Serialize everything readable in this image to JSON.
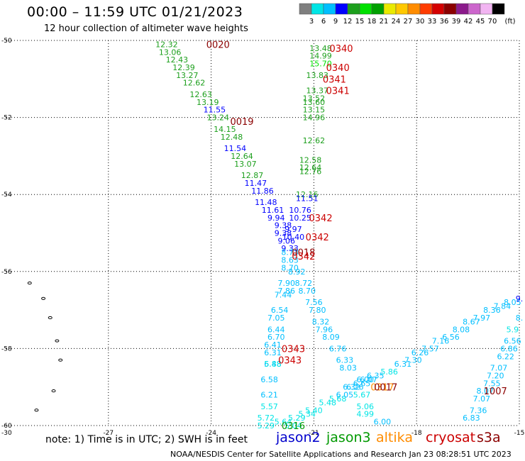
{
  "page": {
    "title": "00:00 – 11:59 UTC 01/21/2023",
    "subtitle": "12 hour collection of altimeter wave heights",
    "note": "note: 1) Time is in UTC; 2) SWH is in feet",
    "credit": "NOAA/NESDIS Center for Satellite Applications and Research    Jan 23 08:28:51 UTC 2023"
  },
  "chart_data": {
    "type": "scatter",
    "title": "00:00 – 11:59 UTC 01/21/2023",
    "subtitle": "12 hour collection of altimeter wave heights",
    "xlim": [
      -30,
      -15
    ],
    "ylim": [
      -60,
      -50
    ],
    "x_ticks": [
      -27,
      -24,
      -21,
      -18,
      -15
    ],
    "x_tick_labels": [
      "-27",
      "-24",
      "-21",
      "-18",
      "-15"
    ],
    "y_ticks": [
      -50,
      -52,
      -54,
      -56,
      -58,
      -60
    ],
    "y_tick_labels": [
      "-50",
      "-52",
      "-54",
      "-56",
      "-58",
      "-60"
    ],
    "grid": true,
    "colorbar": {
      "unit": "(ft)",
      "labels": [
        "3",
        "6",
        "9",
        "12",
        "15",
        "18",
        "21",
        "24",
        "27",
        "30",
        "33",
        "36",
        "39",
        "42",
        "45",
        "70"
      ],
      "colors": [
        "#7f7f7f",
        "#00e5e5",
        "#00bfff",
        "#0000ff",
        "#1c9f1c",
        "#00e000",
        "#00a000",
        "#eaea00",
        "#ffc800",
        "#ff8c00",
        "#ff3c00",
        "#d40000",
        "#8b0000",
        "#8b1a8b",
        "#cc66cc",
        "#f2b5f2",
        "#000000"
      ]
    },
    "satellites": [
      {
        "name": "jason2",
        "color": "#0000cc"
      },
      {
        "name": "jason3",
        "color": "#009900"
      },
      {
        "name": "altika",
        "color": "#ff8c00"
      },
      {
        "name": "cryosat",
        "color": "#cc0000"
      },
      {
        "name": "s3a",
        "color": "#8b0000"
      }
    ],
    "time_labels": [
      {
        "text": "0020",
        "lon": -23.8,
        "lat": -50.1,
        "color": "#8b0000"
      },
      {
        "text": "0019",
        "lon": -23.1,
        "lat": -52.1,
        "color": "#8b0000"
      },
      {
        "text": "0340",
        "lon": -20.2,
        "lat": -50.2,
        "color": "#cc0000"
      },
      {
        "text": "0340",
        "lon": -20.3,
        "lat": -50.7,
        "color": "#cc0000"
      },
      {
        "text": "0341",
        "lon": -20.4,
        "lat": -51.0,
        "color": "#cc0000"
      },
      {
        "text": "0341",
        "lon": -20.3,
        "lat": -51.3,
        "color": "#cc0000"
      },
      {
        "text": "0342",
        "lon": -20.8,
        "lat": -54.6,
        "color": "#cc0000"
      },
      {
        "text": "0342",
        "lon": -20.9,
        "lat": -55.1,
        "color": "#cc0000"
      },
      {
        "text": "0018",
        "lon": -21.3,
        "lat": -55.5,
        "color": "#8b0000"
      },
      {
        "text": "0342",
        "lon": -21.3,
        "lat": -55.6,
        "color": "#cc0000"
      },
      {
        "text": "0343",
        "lon": -21.6,
        "lat": -58.0,
        "color": "#cc0000"
      },
      {
        "text": "0343",
        "lon": -21.7,
        "lat": -58.3,
        "color": "#cc0000"
      },
      {
        "text": "0317",
        "lon": -19.0,
        "lat": -59.0,
        "color": "#ff8c00"
      },
      {
        "text": "0017",
        "lon": -18.9,
        "lat": -59.0,
        "color": "#8b0000"
      },
      {
        "text": "0316",
        "lon": -21.6,
        "lat": -60.0,
        "color": "#009900"
      },
      {
        "text": "1007",
        "lon": -15.7,
        "lat": -59.1,
        "color": "#8b0000"
      }
    ],
    "points": [
      {
        "lon": -25.3,
        "lat": -50.1,
        "v": "12.32"
      },
      {
        "lon": -25.2,
        "lat": -50.3,
        "v": "13.06"
      },
      {
        "lon": -25.0,
        "lat": -50.5,
        "v": "12.43"
      },
      {
        "lon": -24.8,
        "lat": -50.7,
        "v": "12.39"
      },
      {
        "lon": -24.7,
        "lat": -50.9,
        "v": "13.27"
      },
      {
        "lon": -24.5,
        "lat": -51.1,
        "v": "12.62"
      },
      {
        "lon": -24.3,
        "lat": -51.4,
        "v": "12.63"
      },
      {
        "lon": -24.1,
        "lat": -51.6,
        "v": "13.19"
      },
      {
        "lon": -23.9,
        "lat": -51.8,
        "v": "11.55"
      },
      {
        "lon": -23.8,
        "lat": -52.0,
        "v": "13.24"
      },
      {
        "lon": -23.6,
        "lat": -52.3,
        "v": "14.15"
      },
      {
        "lon": -23.4,
        "lat": -52.5,
        "v": "12.48"
      },
      {
        "lon": -23.3,
        "lat": -52.8,
        "v": "11.54"
      },
      {
        "lon": -23.1,
        "lat": -53.0,
        "v": "12.64"
      },
      {
        "lon": -23.0,
        "lat": -53.2,
        "v": "13.07"
      },
      {
        "lon": -22.8,
        "lat": -53.5,
        "v": "12.87"
      },
      {
        "lon": -22.7,
        "lat": -53.7,
        "v": "11.47"
      },
      {
        "lon": -22.5,
        "lat": -53.9,
        "v": "11.86"
      },
      {
        "lon": -22.4,
        "lat": -54.2,
        "v": "11.48"
      },
      {
        "lon": -22.2,
        "lat": -54.4,
        "v": "11.61"
      },
      {
        "lon": -22.1,
        "lat": -54.6,
        "v": "9.94"
      },
      {
        "lon": -21.9,
        "lat": -54.8,
        "v": "9.38"
      },
      {
        "lon": -21.9,
        "lat": -55.0,
        "v": "9.38"
      },
      {
        "lon": -21.8,
        "lat": -55.2,
        "v": "9.06"
      },
      {
        "lon": -21.7,
        "lat": -55.4,
        "v": "9.33"
      },
      {
        "lon": -21.7,
        "lat": -55.5,
        "v": "8.73"
      },
      {
        "lon": -21.7,
        "lat": -55.7,
        "v": "8.63"
      },
      {
        "lon": -21.7,
        "lat": -55.9,
        "v": "8.70"
      },
      {
        "lon": -21.5,
        "lat": -56.0,
        "v": "8.92"
      },
      {
        "lon": -21.8,
        "lat": -56.3,
        "v": "7.90"
      },
      {
        "lon": -21.3,
        "lat": -56.3,
        "v": "8.72"
      },
      {
        "lon": -21.8,
        "lat": -56.5,
        "v": "7.86"
      },
      {
        "lon": -21.9,
        "lat": -56.6,
        "v": "7.44"
      },
      {
        "lon": -21.2,
        "lat": -56.5,
        "v": "8.70"
      },
      {
        "lon": -21.0,
        "lat": -56.8,
        "v": "7.56"
      },
      {
        "lon": -22.0,
        "lat": -57.0,
        "v": "6.54"
      },
      {
        "lon": -20.9,
        "lat": -57.0,
        "v": "7.80"
      },
      {
        "lon": -22.1,
        "lat": -57.2,
        "v": "7.05"
      },
      {
        "lon": -20.8,
        "lat": -57.3,
        "v": "8.32"
      },
      {
        "lon": -20.7,
        "lat": -57.5,
        "v": "7.96"
      },
      {
        "lon": -22.1,
        "lat": -57.5,
        "v": "6.44"
      },
      {
        "lon": -22.1,
        "lat": -57.7,
        "v": "6.70"
      },
      {
        "lon": -20.5,
        "lat": -57.7,
        "v": "8.09"
      },
      {
        "lon": -20.3,
        "lat": -58.0,
        "v": "6.76"
      },
      {
        "lon": -22.2,
        "lat": -57.9,
        "v": "6.41"
      },
      {
        "lon": -22.2,
        "lat": -58.1,
        "v": "6.31"
      },
      {
        "lon": -20.1,
        "lat": -58.3,
        "v": "6.33"
      },
      {
        "lon": -22.2,
        "lat": -58.4,
        "v": "6.48"
      },
      {
        "lon": -22.2,
        "lat": -58.4,
        "v": "5.88"
      },
      {
        "lon": -20.0,
        "lat": -58.5,
        "v": "8.03"
      },
      {
        "lon": -22.3,
        "lat": -58.8,
        "v": "6.58"
      },
      {
        "lon": -19.5,
        "lat": -58.8,
        "v": "6.00"
      },
      {
        "lon": -19.8,
        "lat": -59.0,
        "v": "6.26"
      },
      {
        "lon": -19.6,
        "lat": -59.2,
        "v": "5.67"
      },
      {
        "lon": -22.3,
        "lat": -59.2,
        "v": "6.21"
      },
      {
        "lon": -22.3,
        "lat": -59.5,
        "v": "5.57"
      },
      {
        "lon": -19.5,
        "lat": -59.5,
        "v": "5.06"
      },
      {
        "lon": -19.5,
        "lat": -59.7,
        "v": "4.99"
      },
      {
        "lon": -19.0,
        "lat": -59.9,
        "v": "6.00"
      },
      {
        "lon": -22.4,
        "lat": -59.8,
        "v": "5.72"
      },
      {
        "lon": -22.4,
        "lat": -60.0,
        "v": "5.29"
      },
      {
        "lon": -21.9,
        "lat": -59.9,
        "v": "5.64"
      },
      {
        "lon": -21.6,
        "lat": -60.0,
        "v": "5.04"
      },
      {
        "lon": -21.5,
        "lat": -59.8,
        "v": "5.29"
      },
      {
        "lon": -21.2,
        "lat": -59.7,
        "v": "5.34"
      },
      {
        "lon": -21.0,
        "lat": -59.6,
        "v": "5.40"
      },
      {
        "lon": -20.6,
        "lat": -59.4,
        "v": "5.48"
      },
      {
        "lon": -20.3,
        "lat": -59.3,
        "v": "5.68"
      },
      {
        "lon": -20.1,
        "lat": -59.2,
        "v": "6.05"
      },
      {
        "lon": -19.9,
        "lat": -59.0,
        "v": "6.32"
      },
      {
        "lon": -19.6,
        "lat": -58.9,
        "v": "6.65"
      },
      {
        "lon": -19.4,
        "lat": -58.8,
        "v": "6.07"
      },
      {
        "lon": -19.2,
        "lat": -58.7,
        "v": "6.35"
      },
      {
        "lon": -18.8,
        "lat": -58.6,
        "v": "5.86"
      },
      {
        "lon": -18.4,
        "lat": -58.4,
        "v": "6.31"
      },
      {
        "lon": -18.1,
        "lat": -58.3,
        "v": "7.30"
      },
      {
        "lon": -17.9,
        "lat": -58.1,
        "v": "6.26"
      },
      {
        "lon": -17.6,
        "lat": -58.0,
        "v": "7.57"
      },
      {
        "lon": -17.3,
        "lat": -57.8,
        "v": "7.16"
      },
      {
        "lon": -17.0,
        "lat": -57.7,
        "v": "6.56"
      },
      {
        "lon": -16.7,
        "lat": -57.5,
        "v": "8.08"
      },
      {
        "lon": -16.4,
        "lat": -57.3,
        "v": "8.67"
      },
      {
        "lon": -16.1,
        "lat": -57.2,
        "v": "7.97"
      },
      {
        "lon": -15.8,
        "lat": -57.0,
        "v": "8.36"
      },
      {
        "lon": -15.5,
        "lat": -56.9,
        "v": "7.84"
      },
      {
        "lon": -15.2,
        "lat": -56.8,
        "v": "8.05"
      },
      {
        "lon": -15.0,
        "lat": -56.7,
        "v": "9."
      },
      {
        "lon": -15.0,
        "lat": -57.2,
        "v": "8."
      },
      {
        "lon": -15.2,
        "lat": -57.5,
        "v": "5.9"
      },
      {
        "lon": -15.2,
        "lat": -57.8,
        "v": "6.56"
      },
      {
        "lon": -15.3,
        "lat": -58.0,
        "v": "6.86"
      },
      {
        "lon": -15.4,
        "lat": -58.2,
        "v": "6.22"
      },
      {
        "lon": -15.6,
        "lat": -58.5,
        "v": "7.07"
      },
      {
        "lon": -15.7,
        "lat": -58.7,
        "v": "7.20"
      },
      {
        "lon": -15.8,
        "lat": -58.9,
        "v": "7.55"
      },
      {
        "lon": -16.0,
        "lat": -59.1,
        "v": "8.07"
      },
      {
        "lon": -16.1,
        "lat": -59.3,
        "v": "7.07"
      },
      {
        "lon": -16.2,
        "lat": -59.6,
        "v": "7.36"
      },
      {
        "lon": -16.4,
        "lat": -59.8,
        "v": "6.83"
      },
      {
        "lon": -20.8,
        "lat": -50.2,
        "v": "13.48"
      },
      {
        "lon": -20.8,
        "lat": -50.4,
        "v": "14.99"
      },
      {
        "lon": -20.8,
        "lat": -50.6,
        "v": "15.70"
      },
      {
        "lon": -20.9,
        "lat": -50.9,
        "v": "13.83"
      },
      {
        "lon": -20.9,
        "lat": -51.3,
        "v": "13.37"
      },
      {
        "lon": -21.0,
        "lat": -51.5,
        "v": "13.52"
      },
      {
        "lon": -21.0,
        "lat": -51.6,
        "v": "13.60"
      },
      {
        "lon": -21.0,
        "lat": -51.8,
        "v": "13.15"
      },
      {
        "lon": -21.0,
        "lat": -52.0,
        "v": "14.96"
      },
      {
        "lon": -21.0,
        "lat": -52.6,
        "v": "12.62"
      },
      {
        "lon": -21.1,
        "lat": -53.1,
        "v": "12.58"
      },
      {
        "lon": -21.1,
        "lat": -53.3,
        "v": "12.64"
      },
      {
        "lon": -21.1,
        "lat": -53.4,
        "v": "12.76"
      },
      {
        "lon": -21.2,
        "lat": -54.0,
        "v": "12.16"
      },
      {
        "lon": -21.2,
        "lat": -54.1,
        "v": "11.51"
      },
      {
        "lon": -21.4,
        "lat": -54.4,
        "v": "10.76"
      },
      {
        "lon": -21.4,
        "lat": -54.6,
        "v": "10.25"
      },
      {
        "lon": -21.6,
        "lat": -54.9,
        "v": "9.97"
      },
      {
        "lon": -21.6,
        "lat": -55.1,
        "v": "10.40"
      }
    ]
  }
}
